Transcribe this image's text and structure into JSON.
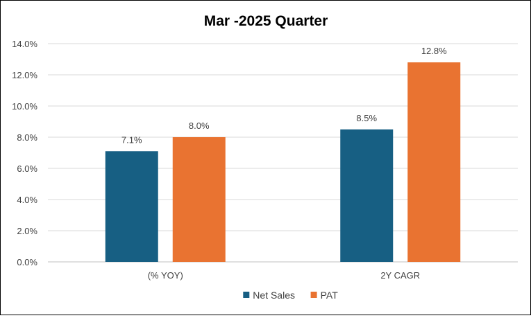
{
  "chart_data": {
    "type": "bar",
    "title": "Mar -2025 Quarter",
    "categories": [
      "(% YOY)",
      "2Y CAGR"
    ],
    "series": [
      {
        "name": "Net Sales",
        "values": [
          7.1,
          8.5
        ],
        "labels": [
          "7.1%",
          "8.5%"
        ],
        "color": "#175f83"
      },
      {
        "name": "PAT",
        "values": [
          8.0,
          12.8
        ],
        "labels": [
          "8.0%",
          "12.8%"
        ],
        "color": "#e97331"
      }
    ],
    "ylim": [
      0,
      14
    ],
    "yticks": [
      "0.0%",
      "2.0%",
      "4.0%",
      "6.0%",
      "8.0%",
      "10.0%",
      "12.0%",
      "14.0%"
    ],
    "grid": true,
    "legend": "bottom"
  }
}
